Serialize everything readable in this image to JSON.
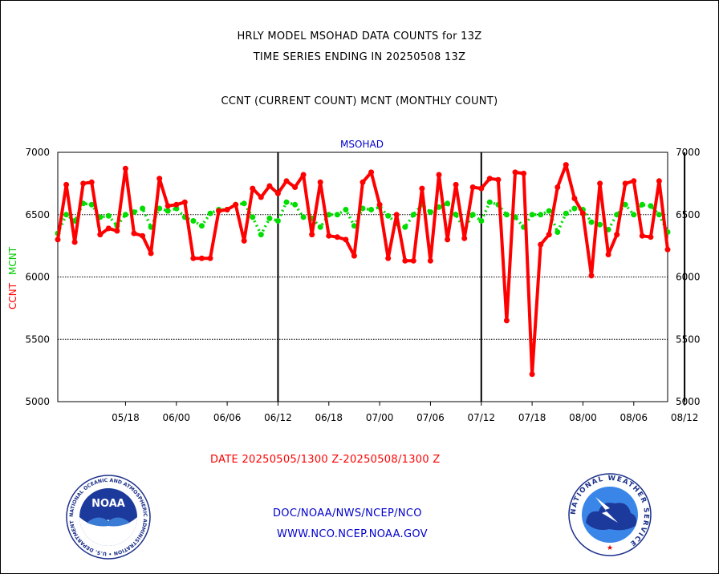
{
  "header": {
    "title_line1": "HRLY MODEL MSOHAD DATA COUNTS for 13Z",
    "title_line2": "TIME SERIES ENDING IN 20250508 13Z",
    "legend_line": "CCNT (CURRENT COUNT) MCNT (MONTHLY COUNT)"
  },
  "footer": {
    "date_range": "DATE 20250505/1300 Z-20250508/1300 Z",
    "credit_line1": "DOC/NOAA/NWS/NCEP/NCO",
    "credit_line2": "WWW.NCO.NCEP.NOAA.GOV"
  },
  "logos": {
    "noaa_label": "NOAA",
    "noaa_ring_text": "NATIONAL OCEANIC AND ATMOSPHERIC ADMINISTRATION • U.S. DEPARTMENT OF COMMERCE",
    "nws_ring_text": "NATIONAL WEATHER SERVICE"
  },
  "chart_data": {
    "type": "line",
    "title": "MSOHAD",
    "ylabel_ccnt": "CCNT",
    "ylabel_mcnt": "MCNT",
    "ylim": [
      5000,
      7000
    ],
    "yticks": [
      5000,
      5500,
      6000,
      6500,
      7000
    ],
    "xtick_labels": [
      "05/18",
      "06/00",
      "06/06",
      "06/12",
      "06/18",
      "07/00",
      "07/06",
      "07/12",
      "07/18",
      "08/00",
      "08/06",
      "08/12"
    ],
    "grid": "horizontal dotted",
    "colors": {
      "ccnt": "#ff0000",
      "mcnt": "#00dd00",
      "title": "#0000cc"
    },
    "series": [
      {
        "name": "CCNT",
        "values": [
          6300,
          6740,
          6280,
          6750,
          6760,
          6340,
          6390,
          6370,
          6870,
          6350,
          6330,
          6190,
          6790,
          6570,
          6580,
          6600,
          6150,
          6150,
          6150,
          6530,
          6540,
          6580,
          6290,
          6710,
          6640,
          6730,
          6670,
          6770,
          6720,
          6820,
          6340,
          6760,
          6330,
          6320,
          6300,
          6170,
          6760,
          6840,
          6580,
          6150,
          6500,
          6130,
          6130,
          6710,
          6130,
          6820,
          6300,
          6740,
          6310,
          6720,
          6710,
          6790,
          6780,
          5650,
          6840,
          6830,
          5220,
          6260,
          6340,
          6720,
          6900,
          6630,
          6510,
          6010,
          6750,
          6180,
          6340,
          6750,
          6770,
          6330,
          6320,
          6770,
          6220
        ]
      },
      {
        "name": "MCNT",
        "values": [
          6350,
          6500,
          6450,
          6590,
          6580,
          6480,
          6490,
          6410,
          6500,
          6520,
          6550,
          6400,
          6550,
          6530,
          6550,
          6480,
          6450,
          6410,
          6510,
          6540,
          6540,
          6580,
          6590,
          6480,
          6340,
          6470,
          6450,
          6600,
          6580,
          6480,
          6470,
          6400,
          6500,
          6500,
          6540,
          6410,
          6550,
          6540,
          6560,
          6490,
          6430,
          6400,
          6500,
          6580,
          6520,
          6560,
          6590,
          6500,
          6380,
          6500,
          6450,
          6600,
          6580,
          6500,
          6480,
          6400,
          6500,
          6500,
          6530,
          6360,
          6510,
          6550,
          6540,
          6440,
          6420,
          6380,
          6500,
          6580,
          6500,
          6580,
          6570,
          6500,
          6360
        ]
      }
    ]
  }
}
